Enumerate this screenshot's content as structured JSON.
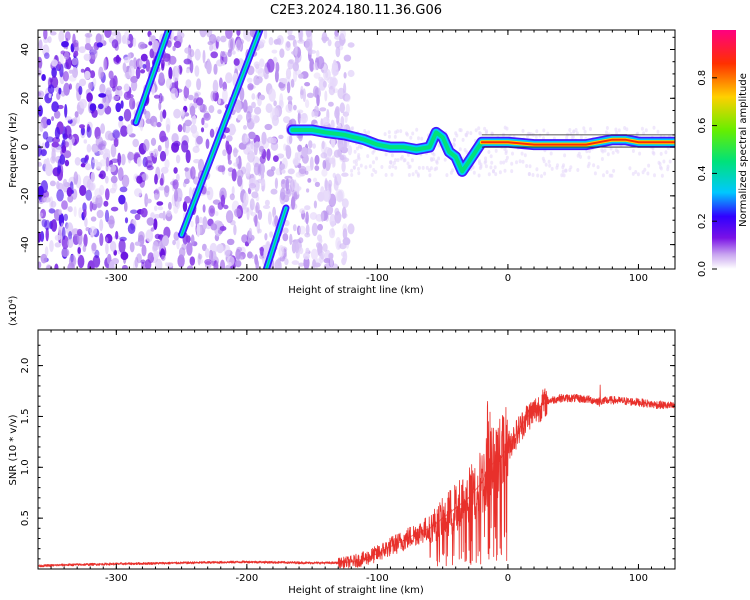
{
  "title": "C2E3.2024.180.11.36.G06",
  "chart_data": [
    {
      "type": "heatmap",
      "xlabel": "Height of straight line (km)",
      "ylabel": "Frequency (Hz)",
      "xlim": [
        -360,
        128
      ],
      "ylim": [
        -50,
        48
      ],
      "xticks": [
        -300,
        -200,
        -100,
        0,
        100
      ],
      "yticks": [
        -40,
        -20,
        0,
        20,
        40
      ],
      "colorbar": {
        "label": "Normalized spectral amplitude",
        "range": [
          0.0,
          1.0
        ],
        "ticks": [
          0.0,
          0.2,
          0.4,
          0.6,
          0.8
        ],
        "colors": [
          "#ffffff",
          "#c9a6f0",
          "#7a12e6",
          "#3000ff",
          "#00c8ff",
          "#00e27a",
          "#66ee00",
          "#ffd000",
          "#ff3000",
          "#ff0080"
        ]
      },
      "features": [
        {
          "name": "tone",
          "points": [
            [
              -165,
              7
            ],
            [
              -150,
              7
            ],
            [
              -140,
              6
            ],
            [
              -125,
              5
            ],
            [
              -110,
              3
            ],
            [
              -100,
              1
            ],
            [
              -90,
              0
            ],
            [
              -80,
              0
            ],
            [
              -70,
              -1
            ],
            [
              -60,
              0
            ],
            [
              -55,
              6
            ],
            [
              -50,
              4
            ],
            [
              -45,
              -2
            ],
            [
              -40,
              -4
            ],
            [
              -35,
              -10
            ],
            [
              -30,
              -6
            ],
            [
              -20,
              2
            ],
            [
              -10,
              2
            ],
            [
              0,
              2
            ],
            [
              20,
              1
            ],
            [
              40,
              1
            ],
            [
              60,
              1
            ],
            [
              80,
              3
            ],
            [
              90,
              3
            ],
            [
              100,
              2
            ],
            [
              128,
              2
            ]
          ]
        },
        {
          "name": "stripe1",
          "points": [
            [
              -285,
              10
            ],
            [
              -260,
              48
            ]
          ]
        },
        {
          "name": "stripe2",
          "points": [
            [
              -250,
              -36
            ],
            [
              -190,
              48
            ]
          ]
        },
        {
          "name": "stripe3",
          "points": [
            [
              -185,
              -50
            ],
            [
              -170,
              -25
            ]
          ]
        }
      ]
    },
    {
      "type": "line",
      "xlabel": "Height of straight line (km)",
      "ylabel": "SNR (10 * v/v)",
      "y_multiplier": "(x10⁴)",
      "xlim": [
        -360,
        128
      ],
      "ylim": [
        0.0,
        2.35
      ],
      "xticks": [
        -300,
        -200,
        -100,
        0,
        100
      ],
      "yticks": [
        0.5,
        1.0,
        1.5,
        2.0
      ],
      "ytick_labels": [
        "0.5",
        "1.0",
        "1.5",
        "2.0"
      ],
      "line_color": "#e8302b",
      "x": [
        -360,
        -340,
        -300,
        -250,
        -200,
        -150,
        -130,
        -120,
        -110,
        -100,
        -90,
        -80,
        -70,
        -60,
        -50,
        -40,
        -30,
        -20,
        -15,
        -10,
        -5,
        0,
        5,
        10,
        15,
        20,
        25,
        30,
        40,
        50,
        60,
        70,
        80,
        90,
        100,
        110,
        120,
        128
      ],
      "values": [
        0.03,
        0.04,
        0.05,
        0.06,
        0.07,
        0.06,
        0.06,
        0.07,
        0.1,
        0.15,
        0.22,
        0.28,
        0.35,
        0.4,
        0.5,
        0.6,
        0.7,
        0.85,
        1.0,
        1.05,
        1.1,
        1.2,
        1.3,
        1.4,
        1.5,
        1.55,
        1.6,
        1.65,
        1.68,
        1.68,
        1.67,
        1.65,
        1.66,
        1.65,
        1.64,
        1.62,
        1.61,
        1.6
      ]
    }
  ]
}
